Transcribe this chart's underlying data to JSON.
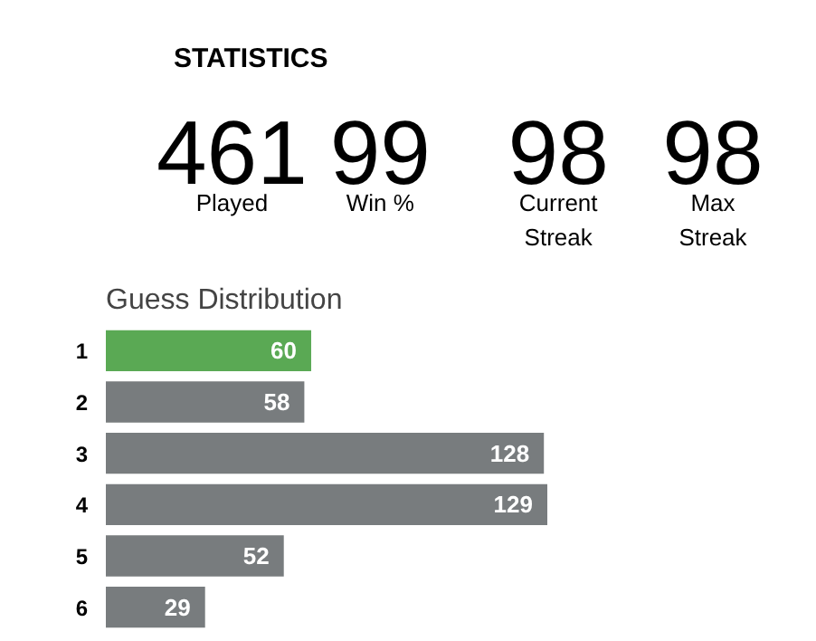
{
  "chart_data": [
    {
      "type": "other",
      "title": "STATISTICS",
      "annotations": [
        "461",
        "Played",
        "99",
        "Win %",
        "98",
        "Current\nStreak",
        "98",
        "Max\nStreak"
      ]
    },
    {
      "type": "bar",
      "orientation": "horizontal",
      "title": "Guess Distribution",
      "categories": [
        "1",
        "2",
        "3",
        "4",
        "5",
        "6"
      ],
      "values": [
        60,
        58,
        128,
        129,
        52,
        29
      ],
      "colors": [
        "#5aa954",
        "#787c7e",
        "#787c7e",
        "#787c7e",
        "#787c7e",
        "#787c7e"
      ],
      "data_labels": true
    }
  ]
}
